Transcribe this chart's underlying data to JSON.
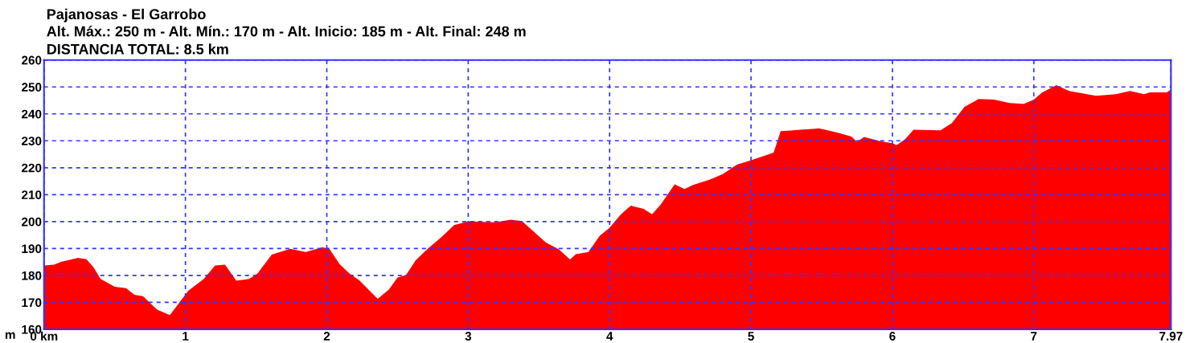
{
  "chart_data": {
    "type": "area",
    "title": "Pajanosas - El Garrobo",
    "subtitle": "Alt. Máx.: 250 m - Alt. Mín.: 170 m - Alt. Inicio: 185 m - Alt. Final: 248 m",
    "annotations": [
      "DISTANCIA TOTAL: 8.5 km"
    ],
    "ylabel": "m",
    "x": [
      0,
      0.07,
      0.12,
      0.24,
      0.3,
      0.35,
      0.4,
      0.5,
      0.58,
      0.64,
      0.7,
      0.8,
      0.89,
      1.02,
      1.13,
      1.21,
      1.28,
      1.36,
      1.45,
      1.51,
      1.61,
      1.74,
      1.85,
      1.97,
      2.02,
      2.09,
      2.16,
      2.23,
      2.36,
      2.44,
      2.5,
      2.56,
      2.63,
      2.71,
      2.81,
      2.9,
      3.0,
      3.19,
      3.3,
      3.38,
      3.45,
      3.55,
      3.64,
      3.72,
      3.76,
      3.85,
      3.93,
      4.0,
      4.08,
      4.15,
      4.24,
      4.3,
      4.36,
      4.46,
      4.53,
      4.59,
      4.71,
      4.8,
      4.9,
      5.0,
      5.16,
      5.21,
      5.28,
      5.35,
      5.48,
      5.61,
      5.71,
      5.75,
      5.8,
      5.92,
      6.0,
      6.03,
      6.09,
      6.15,
      6.34,
      6.42,
      6.51,
      6.61,
      6.72,
      6.83,
      6.93,
      7.0,
      7.06,
      7.16,
      7.25,
      7.44,
      7.58,
      7.68,
      7.78,
      7.82,
      7.94,
      7.97
    ],
    "series": [
      {
        "color": "#ff0000",
        "values": [
          183.7,
          184,
          185,
          186.5,
          186,
          183,
          178.7,
          175.8,
          175.3,
          172.8,
          172.3,
          167.3,
          165.3,
          174.3,
          178.7,
          183.7,
          184,
          178,
          178.7,
          180.7,
          187.7,
          189.9,
          188.7,
          190.5,
          189.7,
          184.2,
          180.7,
          178.2,
          171.3,
          174.8,
          179.2,
          180.2,
          185.7,
          189.7,
          194.2,
          198.7,
          200.1,
          199.7,
          200.7,
          200.2,
          196.9,
          192.2,
          189.7,
          185.9,
          187.9,
          188.7,
          194.7,
          197.7,
          202.7,
          205.9,
          204.7,
          202.7,
          206.2,
          213.8,
          212.1,
          213.6,
          215.6,
          217.6,
          221.1,
          222.8,
          225.6,
          233.6,
          233.8,
          234.1,
          234.6,
          233.1,
          231.6,
          229.6,
          231.4,
          229.8,
          229.1,
          228.4,
          230.6,
          234.1,
          233.9,
          236.6,
          242.6,
          245.5,
          245.3,
          244,
          243.7,
          245.3,
          248,
          250.7,
          248.5,
          246.7,
          247.3,
          248.5,
          247.3,
          248,
          248,
          249
        ]
      }
    ],
    "xlim": [
      0,
      7.97
    ],
    "xticks": [
      {
        "value": 0,
        "label": "0 km"
      },
      1,
      2,
      3,
      4,
      5,
      6,
      7,
      7.97
    ],
    "ylim": [
      160,
      260
    ],
    "yticks": [
      160,
      170,
      180,
      190,
      200,
      210,
      220,
      230,
      240,
      250,
      260
    ],
    "grid": true
  }
}
